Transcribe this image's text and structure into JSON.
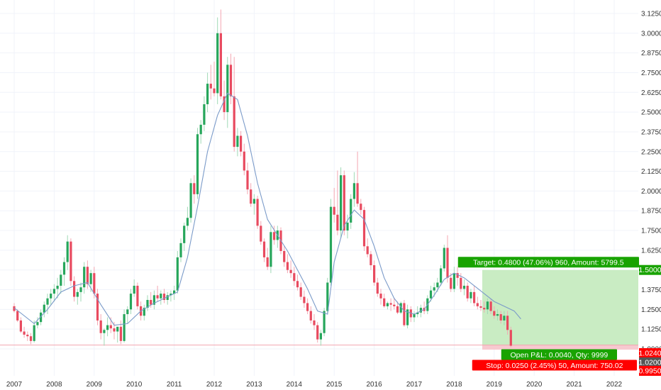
{
  "chart_data": {
    "type": "candlestick",
    "interval": "monthly",
    "colors": {
      "up": "#26a65b",
      "down": "#e84a5f",
      "ma_line": "#7b9bc9",
      "grid": "#f0f3fa",
      "target_zone": "#c9ecc3",
      "stop_zone": "#f7c9cf",
      "target_badge": "#18a300",
      "stop_badge": "#ff0000",
      "price_badge": "#555555"
    },
    "y_axis": {
      "range": [
        0.98,
        3.15
      ],
      "ticks": [
        "3.1250",
        "3.0000",
        "2.8750",
        "2.7500",
        "2.6250",
        "2.5000",
        "2.3750",
        "2.2500",
        "2.1250",
        "2.0000",
        "1.8750",
        "1.7500",
        "1.6250",
        "1.5000",
        "1.3750",
        "1.2500",
        "1.1250",
        "1.0000"
      ]
    },
    "x_axis": {
      "ticks": [
        "2007",
        "2008",
        "2009",
        "2010",
        "2011",
        "2012",
        "2013",
        "2014",
        "2015",
        "2016",
        "2017",
        "2018",
        "2019",
        "2020",
        "2021",
        "2022"
      ]
    },
    "candles_ohlc": [
      [
        1.27,
        1.29,
        1.23,
        1.24
      ],
      [
        1.24,
        1.25,
        1.17,
        1.18
      ],
      [
        1.18,
        1.2,
        1.1,
        1.11
      ],
      [
        1.11,
        1.14,
        1.07,
        1.09
      ],
      [
        1.09,
        1.11,
        1.05,
        1.08
      ],
      [
        1.08,
        1.1,
        1.03,
        1.05
      ],
      [
        1.05,
        1.18,
        1.04,
        1.15
      ],
      [
        1.15,
        1.2,
        1.13,
        1.17
      ],
      [
        1.17,
        1.25,
        1.15,
        1.23
      ],
      [
        1.23,
        1.3,
        1.2,
        1.28
      ],
      [
        1.28,
        1.35,
        1.22,
        1.32
      ],
      [
        1.32,
        1.38,
        1.28,
        1.35
      ],
      [
        1.35,
        1.41,
        1.3,
        1.38
      ],
      [
        1.38,
        1.45,
        1.32,
        1.4
      ],
      [
        1.4,
        1.5,
        1.35,
        1.47
      ],
      [
        1.47,
        1.58,
        1.4,
        1.55
      ],
      [
        1.55,
        1.72,
        1.5,
        1.68
      ],
      [
        1.68,
        1.7,
        1.4,
        1.43
      ],
      [
        1.43,
        1.46,
        1.3,
        1.33
      ],
      [
        1.33,
        1.38,
        1.28,
        1.36
      ],
      [
        1.36,
        1.42,
        1.3,
        1.39
      ],
      [
        1.39,
        1.55,
        1.35,
        1.52
      ],
      [
        1.52,
        1.56,
        1.38,
        1.41
      ],
      [
        1.41,
        1.5,
        1.36,
        1.48
      ],
      [
        1.48,
        1.52,
        1.32,
        1.35
      ],
      [
        1.35,
        1.38,
        1.15,
        1.18
      ],
      [
        1.18,
        1.22,
        1.06,
        1.1
      ],
      [
        1.1,
        1.13,
        1.02,
        1.12
      ],
      [
        1.12,
        1.2,
        1.08,
        1.15
      ],
      [
        1.15,
        1.2,
        1.1,
        1.13
      ],
      [
        1.13,
        1.17,
        1.06,
        1.11
      ],
      [
        1.11,
        1.14,
        1.04,
        1.14
      ],
      [
        1.14,
        1.18,
        1.03,
        1.05
      ],
      [
        1.05,
        1.25,
        1.04,
        1.22
      ],
      [
        1.22,
        1.27,
        1.16,
        1.25
      ],
      [
        1.25,
        1.38,
        1.22,
        1.35
      ],
      [
        1.35,
        1.44,
        1.33,
        1.4
      ],
      [
        1.4,
        1.42,
        1.25,
        1.27
      ],
      [
        1.27,
        1.3,
        1.18,
        1.21
      ],
      [
        1.21,
        1.28,
        1.18,
        1.26
      ],
      [
        1.26,
        1.34,
        1.24,
        1.31
      ],
      [
        1.31,
        1.36,
        1.26,
        1.28
      ],
      [
        1.28,
        1.37,
        1.25,
        1.34
      ],
      [
        1.34,
        1.4,
        1.3,
        1.32
      ],
      [
        1.32,
        1.37,
        1.28,
        1.35
      ],
      [
        1.35,
        1.38,
        1.29,
        1.31
      ],
      [
        1.31,
        1.36,
        1.28,
        1.34
      ],
      [
        1.34,
        1.37,
        1.3,
        1.35
      ],
      [
        1.35,
        1.4,
        1.31,
        1.37
      ],
      [
        1.37,
        1.62,
        1.35,
        1.58
      ],
      [
        1.58,
        1.7,
        1.55,
        1.67
      ],
      [
        1.67,
        1.8,
        1.62,
        1.78
      ],
      [
        1.78,
        1.9,
        1.75,
        1.83
      ],
      [
        1.83,
        2.08,
        1.8,
        2.05
      ],
      [
        2.05,
        2.1,
        1.92,
        1.98
      ],
      [
        1.98,
        2.4,
        1.95,
        2.36
      ],
      [
        2.36,
        2.45,
        2.3,
        2.42
      ],
      [
        2.42,
        2.6,
        2.38,
        2.55
      ],
      [
        2.55,
        2.75,
        2.5,
        2.68
      ],
      [
        2.68,
        2.8,
        2.58,
        2.65
      ],
      [
        2.65,
        2.82,
        2.6,
        2.62
      ],
      [
        2.62,
        3.1,
        2.55,
        3.0
      ],
      [
        3.0,
        3.15,
        2.58,
        2.6
      ],
      [
        2.6,
        2.7,
        2.45,
        2.5
      ],
      [
        2.5,
        2.85,
        2.4,
        2.8
      ],
      [
        2.8,
        2.87,
        2.55,
        2.6
      ],
      [
        2.6,
        2.85,
        2.25,
        2.28
      ],
      [
        2.28,
        2.4,
        2.22,
        2.35
      ],
      [
        2.35,
        2.38,
        2.22,
        2.25
      ],
      [
        2.25,
        2.3,
        2.1,
        2.13
      ],
      [
        2.13,
        2.18,
        1.98,
        2.01
      ],
      [
        2.01,
        2.05,
        1.9,
        1.92
      ],
      [
        1.92,
        1.98,
        1.85,
        1.95
      ],
      [
        1.95,
        1.97,
        1.76,
        1.78
      ],
      [
        1.78,
        1.81,
        1.66,
        1.68
      ],
      [
        1.68,
        1.7,
        1.55,
        1.58
      ],
      [
        1.58,
        1.64,
        1.5,
        1.52
      ],
      [
        1.52,
        1.78,
        1.48,
        1.74
      ],
      [
        1.74,
        1.78,
        1.66,
        1.69
      ],
      [
        1.69,
        1.78,
        1.64,
        1.75
      ],
      [
        1.75,
        1.77,
        1.6,
        1.62
      ],
      [
        1.62,
        1.65,
        1.52,
        1.55
      ],
      [
        1.55,
        1.6,
        1.48,
        1.5
      ],
      [
        1.5,
        1.56,
        1.45,
        1.48
      ],
      [
        1.48,
        1.52,
        1.4,
        1.43
      ],
      [
        1.43,
        1.47,
        1.37,
        1.39
      ],
      [
        1.39,
        1.42,
        1.31,
        1.33
      ],
      [
        1.33,
        1.37,
        1.26,
        1.29
      ],
      [
        1.29,
        1.32,
        1.22,
        1.24
      ],
      [
        1.24,
        1.27,
        1.16,
        1.18
      ],
      [
        1.18,
        1.22,
        1.12,
        1.15
      ],
      [
        1.15,
        1.17,
        1.04,
        1.06
      ],
      [
        1.06,
        1.12,
        1.02,
        1.1
      ],
      [
        1.1,
        1.26,
        1.08,
        1.24
      ],
      [
        1.24,
        1.45,
        1.22,
        1.42
      ],
      [
        1.42,
        1.95,
        1.4,
        1.9
      ],
      [
        1.9,
        2.02,
        1.8,
        1.85
      ],
      [
        1.85,
        2.13,
        1.72,
        1.75
      ],
      [
        1.75,
        2.15,
        1.7,
        2.1
      ],
      [
        2.1,
        2.13,
        1.72,
        1.75
      ],
      [
        1.75,
        1.85,
        1.7,
        1.8
      ],
      [
        1.8,
        1.98,
        1.76,
        1.95
      ],
      [
        1.95,
        2.12,
        1.9,
        2.05
      ],
      [
        2.05,
        2.25,
        1.9,
        1.92
      ],
      [
        1.92,
        1.95,
        1.85,
        1.88
      ],
      [
        1.88,
        1.9,
        1.62,
        1.65
      ],
      [
        1.65,
        1.7,
        1.58,
        1.6
      ],
      [
        1.6,
        1.62,
        1.5,
        1.53
      ],
      [
        1.53,
        1.56,
        1.4,
        1.42
      ],
      [
        1.42,
        1.45,
        1.33,
        1.35
      ],
      [
        1.35,
        1.38,
        1.28,
        1.32
      ],
      [
        1.32,
        1.35,
        1.26,
        1.27
      ],
      [
        1.27,
        1.3,
        1.25,
        1.29
      ],
      [
        1.29,
        1.32,
        1.24,
        1.28
      ],
      [
        1.28,
        1.32,
        1.25,
        1.27
      ],
      [
        1.27,
        1.3,
        1.22,
        1.23
      ],
      [
        1.23,
        1.3,
        1.22,
        1.29
      ],
      [
        1.29,
        1.31,
        1.14,
        1.15
      ],
      [
        1.15,
        1.28,
        1.13,
        1.25
      ],
      [
        1.25,
        1.27,
        1.17,
        1.2
      ],
      [
        1.2,
        1.24,
        1.17,
        1.22
      ],
      [
        1.22,
        1.27,
        1.2,
        1.23
      ],
      [
        1.23,
        1.28,
        1.2,
        1.26
      ],
      [
        1.26,
        1.3,
        1.22,
        1.24
      ],
      [
        1.24,
        1.34,
        1.22,
        1.32
      ],
      [
        1.32,
        1.4,
        1.3,
        1.37
      ],
      [
        1.37,
        1.42,
        1.33,
        1.39
      ],
      [
        1.39,
        1.45,
        1.36,
        1.42
      ],
      [
        1.42,
        1.53,
        1.4,
        1.51
      ],
      [
        1.51,
        1.66,
        1.49,
        1.64
      ],
      [
        1.64,
        1.72,
        1.42,
        1.45
      ],
      [
        1.45,
        1.48,
        1.36,
        1.38
      ],
      [
        1.38,
        1.52,
        1.36,
        1.48
      ],
      [
        1.48,
        1.52,
        1.4,
        1.45
      ],
      [
        1.45,
        1.48,
        1.36,
        1.38
      ],
      [
        1.38,
        1.44,
        1.34,
        1.4
      ],
      [
        1.4,
        1.42,
        1.3,
        1.32
      ],
      [
        1.32,
        1.38,
        1.29,
        1.36
      ],
      [
        1.36,
        1.4,
        1.27,
        1.29
      ],
      [
        1.29,
        1.33,
        1.25,
        1.27
      ],
      [
        1.27,
        1.31,
        1.24,
        1.26
      ],
      [
        1.26,
        1.3,
        1.23,
        1.25
      ],
      [
        1.25,
        1.32,
        1.22,
        1.3
      ],
      [
        1.3,
        1.32,
        1.22,
        1.24
      ],
      [
        1.24,
        1.27,
        1.19,
        1.21
      ],
      [
        1.21,
        1.25,
        1.18,
        1.22
      ],
      [
        1.22,
        1.24,
        1.16,
        1.18
      ],
      [
        1.18,
        1.24,
        1.15,
        1.21
      ],
      [
        1.21,
        1.24,
        1.09,
        1.12
      ],
      [
        1.12,
        1.14,
        1.01,
        1.02
      ]
    ],
    "moving_average": [
      [
        0,
        1.26
      ],
      [
        6,
        1.16
      ],
      [
        10,
        1.25
      ],
      [
        14,
        1.36
      ],
      [
        18,
        1.4
      ],
      [
        22,
        1.42
      ],
      [
        26,
        1.28
      ],
      [
        30,
        1.15
      ],
      [
        34,
        1.16
      ],
      [
        38,
        1.24
      ],
      [
        42,
        1.29
      ],
      [
        46,
        1.33
      ],
      [
        49,
        1.36
      ],
      [
        52,
        1.58
      ],
      [
        55,
        1.9
      ],
      [
        58,
        2.25
      ],
      [
        61,
        2.48
      ],
      [
        64,
        2.62
      ],
      [
        67,
        2.58
      ],
      [
        70,
        2.35
      ],
      [
        73,
        2.05
      ],
      [
        76,
        1.82
      ],
      [
        79,
        1.72
      ],
      [
        82,
        1.62
      ],
      [
        85,
        1.5
      ],
      [
        88,
        1.38
      ],
      [
        91,
        1.24
      ],
      [
        94,
        1.22
      ],
      [
        96,
        1.55
      ],
      [
        99,
        1.78
      ],
      [
        102,
        1.88
      ],
      [
        105,
        1.82
      ],
      [
        108,
        1.65
      ],
      [
        111,
        1.45
      ],
      [
        114,
        1.32
      ],
      [
        117,
        1.24
      ],
      [
        120,
        1.22
      ],
      [
        123,
        1.25
      ],
      [
        126,
        1.34
      ],
      [
        129,
        1.44
      ],
      [
        132,
        1.48
      ],
      [
        135,
        1.45
      ],
      [
        138,
        1.4
      ],
      [
        141,
        1.35
      ],
      [
        144,
        1.3
      ],
      [
        147,
        1.27
      ],
      [
        150,
        1.24
      ],
      [
        152,
        1.19
      ]
    ],
    "trade": {
      "target_price": 1.5,
      "entry_price": 1.024,
      "stop_price": 0.995,
      "current_price": 1.02,
      "target_label": "Target: 0.4800 (47.06%) 960, Amount: 5799.5",
      "pnl_label": "Open P&L: 0.0040, Qty: 9999",
      "stop_label": "Stop: 0.0250 (2.45%) 50, Amount: 750.02",
      "target_tag": "1.5000",
      "entry_tag": "1.0240",
      "price_tag": "1.0200",
      "stop_tag": "0.9950"
    }
  }
}
